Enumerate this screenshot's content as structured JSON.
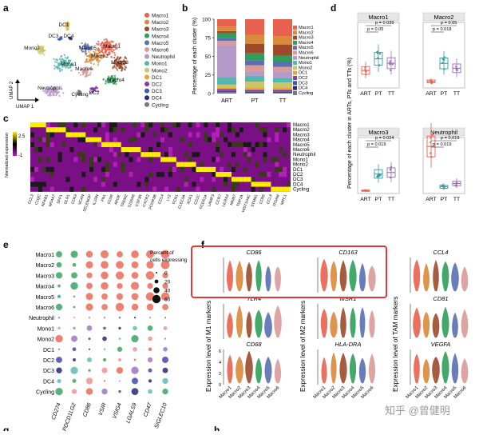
{
  "panel_labels": {
    "a": "a",
    "b": "b",
    "c": "c",
    "d": "d",
    "e": "e",
    "f": "f",
    "g": "g",
    "h": "h"
  },
  "panel_a": {
    "xlabel": "UMAP 1",
    "ylabel": "UMAP 2",
    "cluster_labels": [
      {
        "name": "DC1"
      },
      {
        "name": "DC3"
      },
      {
        "name": "DC4"
      },
      {
        "name": "Mono2"
      },
      {
        "name": "Macro1"
      },
      {
        "name": "Macro2"
      },
      {
        "name": "Macro3"
      },
      {
        "name": "Macro4"
      },
      {
        "name": "Macro5"
      },
      {
        "name": "Macro6"
      },
      {
        "name": "Neutrophil"
      },
      {
        "name": "Cycling"
      },
      {
        "name": "DC2"
      },
      {
        "name": "Mono1"
      }
    ],
    "legend": [
      {
        "name": "Macro1",
        "color": "#e8614f"
      },
      {
        "name": "Macro2",
        "color": "#d98a3a"
      },
      {
        "name": "Macro3",
        "color": "#9b4a2c"
      },
      {
        "name": "Macro4",
        "color": "#2f9e5a"
      },
      {
        "name": "Macro5",
        "color": "#5a6fb4"
      },
      {
        "name": "Macro6",
        "color": "#d99a9a"
      },
      {
        "name": "Neutrophil",
        "color": "#b59ac9"
      },
      {
        "name": "Mono1",
        "color": "#55b6b0"
      },
      {
        "name": "Mono2",
        "color": "#c9c76a"
      },
      {
        "name": "DC1",
        "color": "#e8a630"
      },
      {
        "name": "DC2",
        "color": "#8a3aa8"
      },
      {
        "name": "DC3",
        "color": "#3a55c9"
      },
      {
        "name": "DC4",
        "color": "#2a2a7a"
      },
      {
        "name": "Cycling",
        "color": "#777777"
      }
    ]
  },
  "chart_data": [
    {
      "id": "b",
      "type": "bar",
      "stacked": true,
      "title": "",
      "xlabel": "",
      "ylabel": "Percentage of each cluster (%)",
      "ylim": [
        0,
        100
      ],
      "yticks": [
        "0",
        "25",
        "50",
        "75",
        "100"
      ],
      "categories": [
        "ART",
        "PT",
        "TT"
      ],
      "series": [
        {
          "name": "Cycling",
          "values": [
            2,
            1,
            1
          ]
        },
        {
          "name": "DC4",
          "values": [
            1,
            1,
            1
          ]
        },
        {
          "name": "DC3",
          "values": [
            1,
            1,
            1
          ]
        },
        {
          "name": "DC2",
          "values": [
            2,
            2,
            2
          ]
        },
        {
          "name": "DC1",
          "values": [
            2,
            3,
            3
          ]
        },
        {
          "name": "Mono2",
          "values": [
            4,
            8,
            7
          ]
        },
        {
          "name": "Mono1",
          "values": [
            10,
            8,
            6
          ]
        },
        {
          "name": "Neutrophil",
          "values": [
            43,
            6,
            8
          ]
        },
        {
          "name": "Macro6",
          "values": [
            6,
            8,
            7
          ]
        },
        {
          "name": "Macro5",
          "values": [
            4,
            7,
            7
          ]
        },
        {
          "name": "Macro4",
          "values": [
            6,
            9,
            8
          ]
        },
        {
          "name": "Macro3",
          "values": [
            3,
            13,
            15
          ]
        },
        {
          "name": "Macro2",
          "values": [
            6,
            12,
            11
          ]
        },
        {
          "name": "Macro1",
          "values": [
            10,
            21,
            23
          ]
        }
      ]
    },
    {
      "id": "d",
      "type": "box",
      "ylabel": "Percentage of each cluster in ARTs, PTs and TTs (%)",
      "groups": [
        "ART",
        "PT",
        "TT"
      ],
      "panels": [
        {
          "title": "Macro1",
          "ylim": [
            0,
            45
          ],
          "medians": [
            12,
            20,
            17
          ],
          "p_values": [
            "p = 0.05",
            "p = 0.039"
          ]
        },
        {
          "title": "Macro2",
          "ylim": [
            0,
            40
          ],
          "medians": [
            4,
            15,
            12
          ],
          "p_values": [
            "p = 0.018",
            "p = 0.05"
          ]
        },
        {
          "title": "Macro3",
          "ylim": [
            0,
            40
          ],
          "medians": [
            2,
            14,
            15
          ],
          "p_values": [
            "p = 0.019",
            "p = 0.024"
          ]
        },
        {
          "title": "Neutrophil",
          "ylim": [
            0,
            50
          ],
          "medians": [
            42,
            6,
            9
          ],
          "p_values": [
            "p = 0.019",
            "p = 0.019"
          ]
        }
      ]
    },
    {
      "id": "c",
      "type": "heatmap",
      "rows": [
        "Macro1",
        "Macro2",
        "Macro3",
        "Macro4",
        "Macro5",
        "Macro6",
        "Neutrophil",
        "Mono1",
        "Mono2",
        "DC1",
        "DC2",
        "DC3",
        "DC4",
        "Cycling"
      ],
      "legend_title": "Normalized expression",
      "legend_ticks": [
        "2.5",
        "-1"
      ]
    },
    {
      "id": "e",
      "type": "scatter",
      "rows": [
        "Macro1",
        "Macro2",
        "Macro3",
        "Macro4",
        "Macro5",
        "Macro6",
        "Neutrophil",
        "Mono1",
        "Mono2",
        "DC1",
        "DC2",
        "DC3",
        "DC4",
        "Cycling"
      ],
      "genes": [
        "CD274",
        "PDCD1LG2",
        "CD86",
        "VSIR",
        "VSIG4",
        "LGALS9",
        "CD47",
        "SIGLEC10"
      ],
      "size_legend_title": "Percent of cells expressing",
      "size_legend": [
        "0",
        "20",
        "40",
        "60"
      ]
    }
  ],
  "panel_f": {
    "ylabels": [
      "Expression level of M1 markers",
      "Expression level of M2 markers",
      "Expression level  of TAM markers"
    ],
    "genes": [
      [
        "CD86",
        "TLR4",
        "CD68"
      ],
      [
        "CD163",
        "MSR1",
        "HLA-DRA"
      ],
      [
        "CCL4",
        "CD81",
        "VEGFA"
      ]
    ],
    "xcats": [
      "Macro1",
      "Macro2",
      "Macro3",
      "Macro4",
      "Macro5",
      "Macro6"
    ],
    "yticks": [
      "0",
      "2",
      "4",
      "6"
    ]
  },
  "watermark": "知乎 @曾健明"
}
